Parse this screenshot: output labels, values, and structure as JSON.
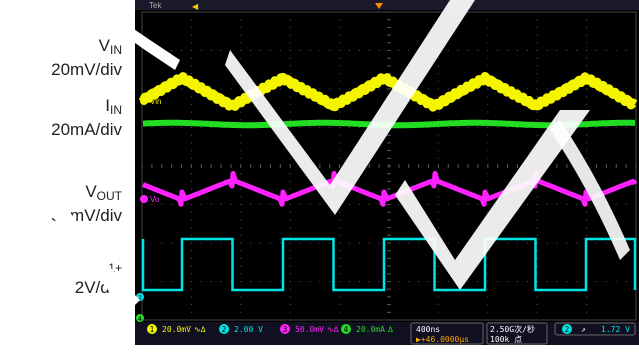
{
  "labels": [
    {
      "name": "V",
      "sub": "IN",
      "scale": "20mV/div"
    },
    {
      "name": "I",
      "sub": "IN",
      "scale": "20mA/div"
    },
    {
      "name": "V",
      "sub": "OUT",
      "scale": "50mV/div"
    },
    {
      "name": "V",
      "sub": "C1+",
      "scale": "2V/div"
    }
  ],
  "status": {
    "top_left": "Tek",
    "ch1": {
      "num": "1",
      "scale": "20.0mV",
      "coupling": "∿∆"
    },
    "ch2": {
      "num": "2",
      "scale": "2.00 V",
      "coupling": ""
    },
    "ch3": {
      "num": "3",
      "scale": "50.0mV",
      "coupling": "∿∆"
    },
    "ch4": {
      "num": "4",
      "scale": "20.0mA",
      "coupling": "∆"
    },
    "timebase": "400ns",
    "delay": "▶+46.0000μs",
    "sample_rate": "2.50G次/秒",
    "record_length": "100k 点",
    "trigger_ch": "2",
    "trigger_slope": "↗",
    "trigger_level": "1.72 V"
  },
  "traces": {
    "ch1_label": "Vin",
    "ch3_label": "Vo",
    "ch2_marker": "2",
    "ch4_marker": "4"
  },
  "colors": {
    "ch1": "#f5f500",
    "ch2": "#00e5e5",
    "ch3": "#ff22ff",
    "ch4": "#22dd22",
    "grid": "#555555"
  }
}
